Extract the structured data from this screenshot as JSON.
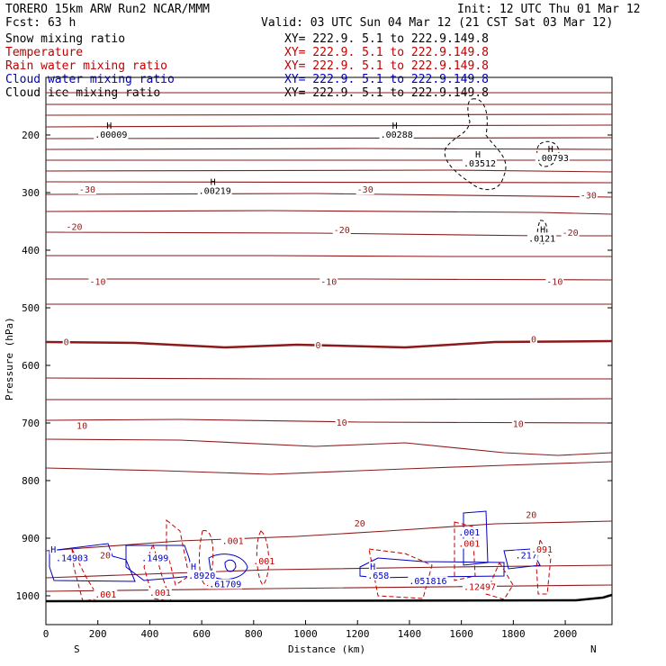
{
  "header": {
    "model": "TORERO  15km ARW   Run2    NCAR/MMM",
    "init": "Init: 12 UTC Thu 01 Mar 12",
    "fcst": "Fcst:   63 h",
    "valid": "Valid: 03 UTC Sun 04 Mar 12 (21 CST Sat 03 Mar 12)"
  },
  "legend": [
    {
      "name": "Snow mixing ratio",
      "color": "#000000",
      "xy": "XY= 222.9.  5.1 to 222.9.149.8"
    },
    {
      "name": "Temperature",
      "color": "#c00000",
      "xy": "XY= 222.9.  5.1 to 222.9.149.8"
    },
    {
      "name": "Rain water mixing ratio",
      "color": "#c00000",
      "xy": "XY= 222.9.  5.1 to 222.9.149.8"
    },
    {
      "name": "Cloud water mixing ratio",
      "color": "#0000c0",
      "xy": "XY= 222.9.  5.1 to 222.9.149.8"
    },
    {
      "name": "Cloud ice mixing ratio",
      "color": "#000000",
      "xy": "XY= 222.9.  5.1 to 222.9.149.8"
    }
  ],
  "chart_data": {
    "type": "contour cross-section",
    "xlabel": "Distance (km)",
    "ylabel": "Pressure (hPa)",
    "xlim": [
      0,
      2180
    ],
    "ylim": [
      1050,
      100
    ],
    "x_ticks": [
      "0",
      "200",
      "400",
      "600",
      "800",
      "1000",
      "1200",
      "1400",
      "1600",
      "1800",
      "2000"
    ],
    "y_ticks": [
      "200",
      "300",
      "400",
      "500",
      "600",
      "700",
      "800",
      "900",
      "1000"
    ],
    "x_ends": {
      "left": "S",
      "right": "N"
    },
    "temperature_labels": [
      {
        "x": 180,
        "p": 300,
        "text": "-30"
      },
      {
        "x": 1250,
        "p": 300,
        "text": "-30"
      },
      {
        "x": 2110,
        "p": 310,
        "text": "-30"
      },
      {
        "x": 130,
        "p": 365,
        "text": "-20"
      },
      {
        "x": 1160,
        "p": 370,
        "text": "-20"
      },
      {
        "x": 2040,
        "p": 375,
        "text": "-20"
      },
      {
        "x": 220,
        "p": 460,
        "text": "-10"
      },
      {
        "x": 1110,
        "p": 460,
        "text": "-10"
      },
      {
        "x": 1980,
        "p": 460,
        "text": "-10"
      },
      {
        "x": 120,
        "p": 565,
        "text": "0"
      },
      {
        "x": 1090,
        "p": 570,
        "text": "0"
      },
      {
        "x": 1920,
        "p": 560,
        "text": "0"
      },
      {
        "x": 170,
        "p": 710,
        "text": "10"
      },
      {
        "x": 1170,
        "p": 705,
        "text": "10"
      },
      {
        "x": 1850,
        "p": 707,
        "text": "10"
      },
      {
        "x": 1240,
        "p": 880,
        "text": "20"
      },
      {
        "x": 1900,
        "p": 865,
        "text": "20"
      },
      {
        "x": 260,
        "p": 935,
        "text": "20"
      }
    ],
    "snow_maxima": [
      {
        "x": 240,
        "p": 205,
        "text": ".00009"
      },
      {
        "x": 640,
        "p": 302,
        "text": ".00219"
      },
      {
        "x": 1340,
        "p": 205,
        "text": ".00288"
      },
      {
        "x": 1660,
        "p": 255,
        "text": ".03512"
      },
      {
        "x": 1940,
        "p": 245,
        "text": ".00793"
      },
      {
        "x": 1910,
        "p": 385,
        "text": ".0121"
      }
    ],
    "cloud_water_labels": [
      {
        "x": 70,
        "p": 925,
        "text": "H"
      },
      {
        "x": 90,
        "p": 940,
        "text": ".14903"
      },
      {
        "x": 420,
        "p": 940,
        "text": ".1499"
      },
      {
        "x": 610,
        "p": 955,
        "text": "H"
      },
      {
        "x": 600,
        "p": 970,
        "text": ".8920"
      },
      {
        "x": 680,
        "p": 985,
        "text": ".61709"
      },
      {
        "x": 1300,
        "p": 955,
        "text": "H"
      },
      {
        "x": 1290,
        "p": 970,
        "text": ".658"
      },
      {
        "x": 1450,
        "p": 980,
        "text": ".051816"
      },
      {
        "x": 1640,
        "p": 895,
        "text": ".001"
      },
      {
        "x": 1860,
        "p": 935,
        "text": ".217"
      }
    ],
    "rain_labels": [
      {
        "x": 730,
        "p": 910,
        "text": ".001"
      },
      {
        "x": 850,
        "p": 945,
        "text": ".001"
      },
      {
        "x": 240,
        "p": 1003,
        "text": ".001"
      },
      {
        "x": 450,
        "p": 1000,
        "text": ".001"
      },
      {
        "x": 1640,
        "p": 915,
        "text": ".001"
      },
      {
        "x": 1660,
        "p": 990,
        "text": ".12497"
      },
      {
        "x": 1920,
        "p": 925,
        "text": ".091"
      }
    ]
  }
}
